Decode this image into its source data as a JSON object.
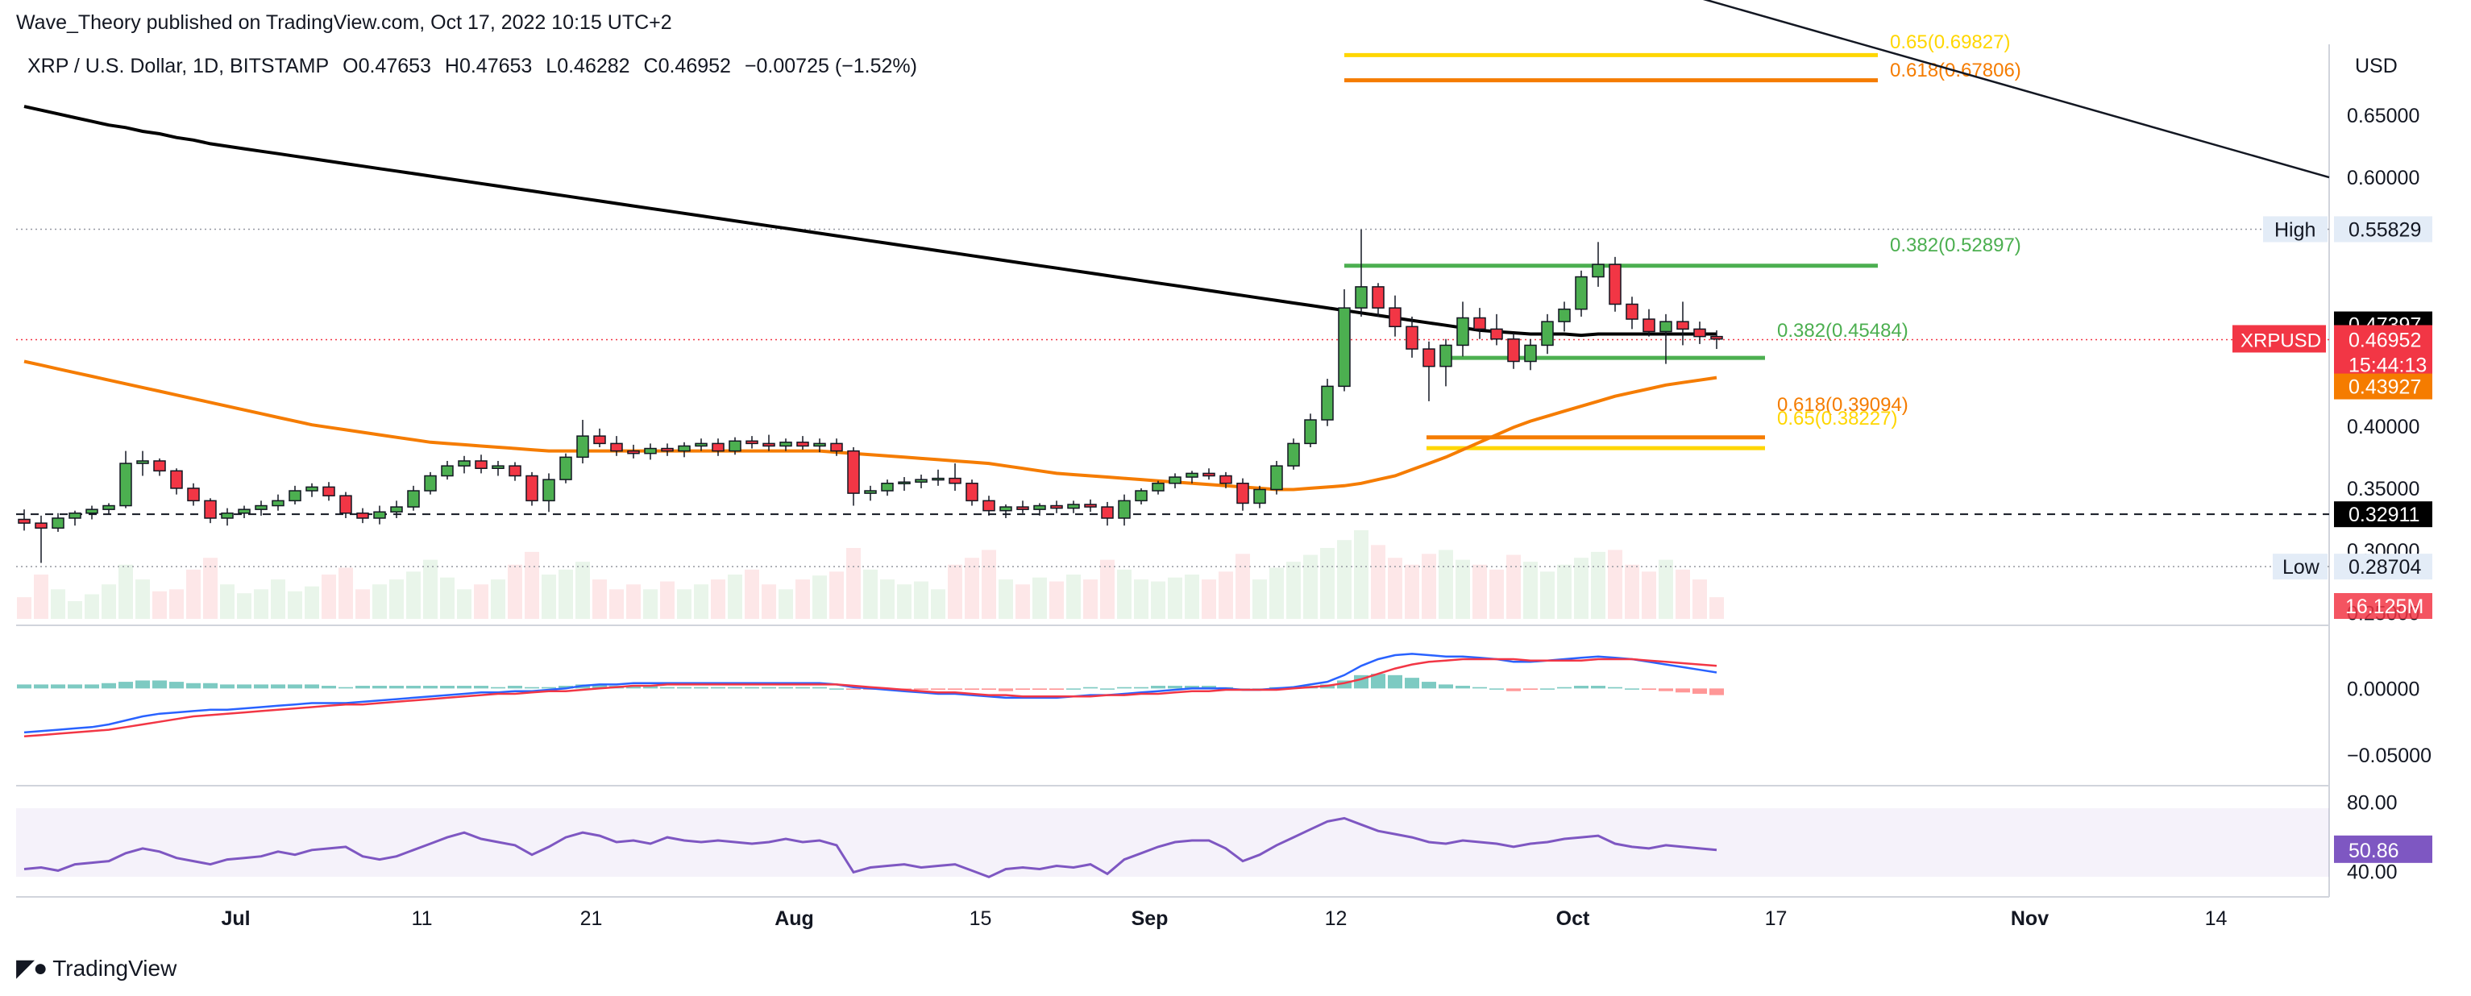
{
  "attribution": "Wave_Theory published on TradingView.com, Oct 17, 2022 10:15 UTC+2",
  "legend": {
    "symbol": "XRP / U.S. Dollar, 1D, BITSTAMP",
    "open": "O0.47653",
    "high": "H0.47653",
    "low": "L0.46282",
    "close": "C0.46952",
    "change": "−0.00725 (−1.52%)"
  },
  "footer": {
    "brand": "TradingView"
  },
  "colors": {
    "up": "#4caf50",
    "down": "#f23645",
    "ma200": "#000000",
    "ma50": "#f57c00",
    "fib_green": "#4caf50",
    "fib_orange": "#f57c00",
    "fib_yellow": "#ffd600",
    "macd": "#2962ff",
    "signal": "#f23645",
    "rsi": "#7e57c2"
  },
  "chart_data": {
    "type": "candlestick",
    "timeframe": "1D",
    "x_ticks": [
      "Jul",
      "11",
      "21",
      "Aug",
      "15",
      "Sep",
      "12",
      "Oct",
      "17",
      "Nov",
      "14"
    ],
    "price_axis": {
      "unit": "USD",
      "ticks": [
        "0.65000",
        "0.60000",
        "0.40000",
        "0.35000",
        "0.30000",
        "0.25000"
      ],
      "ylim": [
        0.245,
        0.705
      ]
    },
    "axis_badges": {
      "high_label": "High",
      "high_value": "0.55829",
      "ma200_value": "0.47397",
      "symbol": "XRPUSD",
      "last_price": "0.46952",
      "countdown": "15:44:13",
      "ma50_value": "0.43927",
      "dashed_level": "0.32911",
      "low_label": "Low",
      "low_value": "0.28704",
      "volume_value": "16.125M"
    },
    "fib_labels": {
      "f65_top": "0.65(0.69827)",
      "f618_top": "0.618(0.67806)",
      "f382_upper": "0.382(0.52897)",
      "f382_lower": "0.382(0.45484)",
      "f618_lower": "0.618(0.39094)",
      "f65_lower": "0.65(0.38227)"
    },
    "levels": [
      {
        "key": "f65_top",
        "price": 0.69827,
        "color": "#ffd600"
      },
      {
        "key": "f618_top",
        "price": 0.67806,
        "color": "#f57c00"
      },
      {
        "key": "f382_upper",
        "price": 0.52897,
        "color": "#4caf50"
      },
      {
        "key": "f382_lower",
        "price": 0.45484,
        "color": "#4caf50"
      },
      {
        "key": "f618_lower",
        "price": 0.39094,
        "color": "#f57c00"
      },
      {
        "key": "f65_lower",
        "price": 0.38227,
        "color": "#ffd600"
      }
    ],
    "horizontal_refs": {
      "high": 0.55829,
      "last": 0.46952,
      "dashed": 0.32911,
      "low": 0.28704
    },
    "candles": [
      [
        0.325,
        0.333,
        0.316,
        0.322
      ],
      [
        0.322,
        0.328,
        0.29,
        0.318
      ],
      [
        0.318,
        0.33,
        0.315,
        0.326
      ],
      [
        0.326,
        0.332,
        0.32,
        0.33
      ],
      [
        0.33,
        0.336,
        0.325,
        0.333
      ],
      [
        0.333,
        0.338,
        0.329,
        0.336
      ],
      [
        0.336,
        0.38,
        0.334,
        0.37
      ],
      [
        0.37,
        0.38,
        0.36,
        0.372
      ],
      [
        0.372,
        0.374,
        0.36,
        0.364
      ],
      [
        0.364,
        0.366,
        0.345,
        0.35
      ],
      [
        0.35,
        0.354,
        0.336,
        0.34
      ],
      [
        0.34,
        0.342,
        0.322,
        0.326
      ],
      [
        0.326,
        0.334,
        0.32,
        0.33
      ],
      [
        0.33,
        0.336,
        0.326,
        0.333
      ],
      [
        0.333,
        0.34,
        0.328,
        0.336
      ],
      [
        0.336,
        0.345,
        0.332,
        0.34
      ],
      [
        0.34,
        0.352,
        0.337,
        0.348
      ],
      [
        0.348,
        0.354,
        0.343,
        0.351
      ],
      [
        0.351,
        0.355,
        0.34,
        0.344
      ],
      [
        0.344,
        0.347,
        0.326,
        0.33
      ],
      [
        0.33,
        0.334,
        0.322,
        0.326
      ],
      [
        0.326,
        0.336,
        0.321,
        0.331
      ],
      [
        0.331,
        0.34,
        0.326,
        0.335
      ],
      [
        0.335,
        0.352,
        0.332,
        0.348
      ],
      [
        0.348,
        0.363,
        0.345,
        0.36
      ],
      [
        0.36,
        0.372,
        0.357,
        0.368
      ],
      [
        0.368,
        0.376,
        0.362,
        0.372
      ],
      [
        0.372,
        0.377,
        0.362,
        0.366
      ],
      [
        0.366,
        0.372,
        0.36,
        0.368
      ],
      [
        0.368,
        0.371,
        0.356,
        0.36
      ],
      [
        0.36,
        0.363,
        0.336,
        0.34
      ],
      [
        0.34,
        0.362,
        0.331,
        0.357
      ],
      [
        0.357,
        0.378,
        0.354,
        0.375
      ],
      [
        0.375,
        0.405,
        0.37,
        0.392
      ],
      [
        0.392,
        0.398,
        0.383,
        0.386
      ],
      [
        0.386,
        0.392,
        0.376,
        0.38
      ],
      [
        0.38,
        0.385,
        0.374,
        0.378
      ],
      [
        0.378,
        0.386,
        0.373,
        0.382
      ],
      [
        0.382,
        0.386,
        0.376,
        0.38
      ],
      [
        0.38,
        0.387,
        0.375,
        0.384
      ],
      [
        0.384,
        0.39,
        0.38,
        0.386
      ],
      [
        0.386,
        0.39,
        0.376,
        0.38
      ],
      [
        0.38,
        0.391,
        0.377,
        0.388
      ],
      [
        0.388,
        0.392,
        0.382,
        0.386
      ],
      [
        0.386,
        0.393,
        0.38,
        0.384
      ],
      [
        0.384,
        0.39,
        0.38,
        0.387
      ],
      [
        0.387,
        0.392,
        0.381,
        0.384
      ],
      [
        0.384,
        0.39,
        0.379,
        0.386
      ],
      [
        0.386,
        0.39,
        0.376,
        0.38
      ],
      [
        0.38,
        0.383,
        0.336,
        0.346
      ],
      [
        0.346,
        0.352,
        0.34,
        0.348
      ],
      [
        0.348,
        0.357,
        0.344,
        0.354
      ],
      [
        0.354,
        0.359,
        0.348,
        0.355
      ],
      [
        0.355,
        0.361,
        0.35,
        0.357
      ],
      [
        0.357,
        0.365,
        0.352,
        0.358
      ],
      [
        0.358,
        0.37,
        0.348,
        0.354
      ],
      [
        0.354,
        0.357,
        0.336,
        0.34
      ],
      [
        0.34,
        0.344,
        0.328,
        0.332
      ],
      [
        0.332,
        0.337,
        0.326,
        0.335
      ],
      [
        0.335,
        0.34,
        0.33,
        0.333
      ],
      [
        0.333,
        0.338,
        0.328,
        0.336
      ],
      [
        0.336,
        0.34,
        0.33,
        0.334
      ],
      [
        0.334,
        0.34,
        0.33,
        0.337
      ],
      [
        0.337,
        0.341,
        0.331,
        0.335
      ],
      [
        0.335,
        0.339,
        0.32,
        0.326
      ],
      [
        0.326,
        0.345,
        0.32,
        0.34
      ],
      [
        0.34,
        0.35,
        0.337,
        0.348
      ],
      [
        0.348,
        0.356,
        0.345,
        0.354
      ],
      [
        0.354,
        0.362,
        0.35,
        0.359
      ],
      [
        0.359,
        0.364,
        0.354,
        0.362
      ],
      [
        0.362,
        0.366,
        0.357,
        0.36
      ],
      [
        0.36,
        0.363,
        0.35,
        0.354
      ],
      [
        0.354,
        0.358,
        0.332,
        0.338
      ],
      [
        0.338,
        0.352,
        0.334,
        0.349
      ],
      [
        0.349,
        0.372,
        0.345,
        0.368
      ],
      [
        0.368,
        0.39,
        0.365,
        0.386
      ],
      [
        0.386,
        0.41,
        0.383,
        0.405
      ],
      [
        0.405,
        0.438,
        0.4,
        0.432
      ],
      [
        0.432,
        0.51,
        0.428,
        0.495
      ],
      [
        0.495,
        0.558,
        0.488,
        0.512
      ],
      [
        0.512,
        0.515,
        0.488,
        0.495
      ],
      [
        0.495,
        0.505,
        0.472,
        0.48
      ],
      [
        0.48,
        0.488,
        0.455,
        0.462
      ],
      [
        0.462,
        0.468,
        0.42,
        0.448
      ],
      [
        0.448,
        0.47,
        0.432,
        0.465
      ],
      [
        0.465,
        0.5,
        0.456,
        0.487
      ],
      [
        0.487,
        0.495,
        0.47,
        0.478
      ],
      [
        0.478,
        0.49,
        0.465,
        0.47
      ],
      [
        0.47,
        0.475,
        0.446,
        0.452
      ],
      [
        0.452,
        0.47,
        0.445,
        0.465
      ],
      [
        0.465,
        0.49,
        0.458,
        0.484
      ],
      [
        0.484,
        0.5,
        0.476,
        0.494
      ],
      [
        0.494,
        0.525,
        0.488,
        0.52
      ],
      [
        0.52,
        0.548,
        0.512,
        0.53
      ],
      [
        0.53,
        0.536,
        0.492,
        0.498
      ],
      [
        0.498,
        0.504,
        0.478,
        0.486
      ],
      [
        0.486,
        0.494,
        0.472,
        0.476
      ],
      [
        0.476,
        0.49,
        0.45,
        0.484
      ],
      [
        0.484,
        0.5,
        0.465,
        0.478
      ],
      [
        0.478,
        0.484,
        0.466,
        0.472
      ],
      [
        0.472,
        0.477,
        0.462,
        0.47
      ]
    ],
    "ma200": [
      0.657,
      0.654,
      0.651,
      0.648,
      0.645,
      0.642,
      0.64,
      0.637,
      0.635,
      0.632,
      0.63,
      0.627,
      0.625,
      0.623,
      0.621,
      0.619,
      0.617,
      0.615,
      0.613,
      0.611,
      0.609,
      0.607,
      0.605,
      0.603,
      0.601,
      0.599,
      0.597,
      0.595,
      0.593,
      0.591,
      0.589,
      0.587,
      0.585,
      0.583,
      0.581,
      0.579,
      0.577,
      0.575,
      0.573,
      0.571,
      0.569,
      0.567,
      0.565,
      0.563,
      0.561,
      0.559,
      0.557,
      0.555,
      0.553,
      0.551,
      0.549,
      0.547,
      0.545,
      0.543,
      0.541,
      0.539,
      0.537,
      0.535,
      0.533,
      0.531,
      0.529,
      0.527,
      0.525,
      0.523,
      0.521,
      0.519,
      0.517,
      0.515,
      0.513,
      0.511,
      0.509,
      0.507,
      0.505,
      0.503,
      0.501,
      0.499,
      0.497,
      0.495,
      0.493,
      0.491,
      0.489,
      0.487,
      0.485,
      0.483,
      0.481,
      0.479,
      0.477,
      0.476,
      0.475,
      0.474,
      0.474,
      0.474,
      0.473,
      0.474,
      0.474,
      0.474,
      0.474,
      0.474,
      0.474,
      0.474,
      0.474
    ],
    "ma50": [
      0.452,
      0.449,
      0.446,
      0.443,
      0.44,
      0.437,
      0.434,
      0.431,
      0.428,
      0.425,
      0.422,
      0.419,
      0.416,
      0.413,
      0.41,
      0.407,
      0.404,
      0.401,
      0.399,
      0.397,
      0.395,
      0.393,
      0.391,
      0.389,
      0.387,
      0.386,
      0.385,
      0.384,
      0.383,
      0.382,
      0.381,
      0.38,
      0.38,
      0.38,
      0.38,
      0.38,
      0.38,
      0.38,
      0.38,
      0.38,
      0.38,
      0.38,
      0.38,
      0.38,
      0.38,
      0.38,
      0.38,
      0.38,
      0.379,
      0.378,
      0.377,
      0.376,
      0.375,
      0.374,
      0.373,
      0.372,
      0.371,
      0.37,
      0.368,
      0.366,
      0.364,
      0.362,
      0.361,
      0.36,
      0.359,
      0.358,
      0.357,
      0.356,
      0.355,
      0.354,
      0.353,
      0.352,
      0.351,
      0.35,
      0.349,
      0.349,
      0.35,
      0.351,
      0.352,
      0.354,
      0.357,
      0.36,
      0.365,
      0.37,
      0.375,
      0.381,
      0.387,
      0.393,
      0.399,
      0.404,
      0.408,
      0.412,
      0.416,
      0.42,
      0.424,
      0.427,
      0.43,
      0.433,
      0.435,
      0.437,
      0.439
    ],
    "trendline": {
      "start": [
        0.69,
        0.748
      ],
      "end": [
        0.941,
        0.6
      ]
    },
    "volume": [
      22,
      45,
      30,
      18,
      25,
      35,
      55,
      40,
      28,
      30,
      50,
      62,
      35,
      26,
      30,
      40,
      28,
      33,
      45,
      52,
      30,
      35,
      40,
      48,
      60,
      42,
      30,
      35,
      40,
      55,
      68,
      45,
      50,
      58,
      40,
      30,
      35,
      30,
      38,
      30,
      35,
      40,
      45,
      50,
      35,
      30,
      40,
      44,
      48,
      72,
      50,
      40,
      35,
      38,
      30,
      55,
      62,
      70,
      40,
      35,
      42,
      38,
      45,
      40,
      60,
      50,
      40,
      38,
      42,
      45,
      40,
      48,
      66,
      40,
      52,
      58,
      65,
      72,
      80,
      90,
      75,
      62,
      55,
      66,
      70,
      60,
      55,
      50,
      65,
      58,
      48,
      55,
      62,
      68,
      70,
      55,
      48,
      60,
      50,
      40,
      22
    ],
    "macd_axis": {
      "ticks": [
        "0.00000",
        "−0.05000"
      ],
      "ylim": [
        -0.07,
        0.045
      ]
    },
    "macd": [
      -0.033,
      -0.032,
      -0.031,
      -0.03,
      -0.029,
      -0.027,
      -0.024,
      -0.021,
      -0.019,
      -0.018,
      -0.017,
      -0.016,
      -0.016,
      -0.015,
      -0.014,
      -0.013,
      -0.012,
      -0.011,
      -0.011,
      -0.011,
      -0.01,
      -0.009,
      -0.008,
      -0.007,
      -0.006,
      -0.005,
      -0.004,
      -0.003,
      -0.003,
      -0.002,
      -0.002,
      -0.001,
      0.0,
      0.002,
      0.003,
      0.003,
      0.004,
      0.004,
      0.004,
      0.004,
      0.004,
      0.004,
      0.004,
      0.004,
      0.004,
      0.004,
      0.004,
      0.004,
      0.003,
      0.001,
      0.0,
      -0.001,
      -0.002,
      -0.003,
      -0.004,
      -0.004,
      -0.005,
      -0.006,
      -0.007,
      -0.007,
      -0.007,
      -0.007,
      -0.006,
      -0.005,
      -0.005,
      -0.004,
      -0.003,
      -0.002,
      -0.001,
      0.0,
      0.0,
      0.0,
      -0.001,
      -0.001,
      0.0,
      0.001,
      0.003,
      0.005,
      0.01,
      0.017,
      0.022,
      0.025,
      0.026,
      0.025,
      0.024,
      0.024,
      0.023,
      0.022,
      0.02,
      0.02,
      0.021,
      0.022,
      0.023,
      0.024,
      0.023,
      0.022,
      0.02,
      0.018,
      0.016,
      0.014,
      0.012
    ],
    "signal": [
      -0.036,
      -0.035,
      -0.034,
      -0.033,
      -0.032,
      -0.031,
      -0.029,
      -0.027,
      -0.025,
      -0.023,
      -0.021,
      -0.02,
      -0.019,
      -0.018,
      -0.017,
      -0.016,
      -0.015,
      -0.014,
      -0.013,
      -0.012,
      -0.012,
      -0.011,
      -0.01,
      -0.009,
      -0.008,
      -0.007,
      -0.006,
      -0.005,
      -0.004,
      -0.004,
      -0.003,
      -0.002,
      -0.002,
      -0.001,
      0.0,
      0.001,
      0.002,
      0.002,
      0.003,
      0.003,
      0.003,
      0.003,
      0.003,
      0.003,
      0.003,
      0.003,
      0.003,
      0.003,
      0.003,
      0.002,
      0.001,
      0.0,
      -0.001,
      -0.002,
      -0.003,
      -0.003,
      -0.004,
      -0.005,
      -0.005,
      -0.006,
      -0.006,
      -0.006,
      -0.006,
      -0.006,
      -0.005,
      -0.005,
      -0.004,
      -0.004,
      -0.003,
      -0.002,
      -0.002,
      -0.001,
      -0.001,
      -0.001,
      -0.001,
      0.0,
      0.001,
      0.002,
      0.004,
      0.007,
      0.011,
      0.015,
      0.018,
      0.02,
      0.021,
      0.022,
      0.022,
      0.022,
      0.022,
      0.021,
      0.021,
      0.021,
      0.021,
      0.022,
      0.022,
      0.022,
      0.021,
      0.02,
      0.019,
      0.018,
      0.017
    ],
    "rsi_axis": {
      "ticks": [
        "80.00",
        "40.00"
      ],
      "ylim": [
        25,
        90
      ]
    },
    "rsi": [
      40,
      41,
      39,
      43,
      44,
      45,
      50,
      53,
      51,
      47,
      45,
      43,
      46,
      47,
      48,
      51,
      49,
      52,
      53,
      54,
      48,
      46,
      48,
      52,
      56,
      60,
      63,
      59,
      57,
      55,
      49,
      54,
      60,
      63,
      61,
      57,
      58,
      56,
      60,
      58,
      57,
      58,
      57,
      56,
      57,
      59,
      57,
      58,
      55,
      38,
      41,
      42,
      43,
      41,
      42,
      43,
      39,
      35,
      40,
      41,
      40,
      42,
      41,
      43,
      37,
      46,
      50,
      54,
      57,
      58,
      58,
      53,
      45,
      49,
      55,
      60,
      65,
      70,
      72,
      68,
      64,
      62,
      60,
      57,
      56,
      58,
      57,
      56,
      54,
      56,
      57,
      59,
      60,
      61,
      56,
      54,
      53,
      55,
      54,
      53,
      52
    ],
    "rsi_badge": "50.86"
  }
}
